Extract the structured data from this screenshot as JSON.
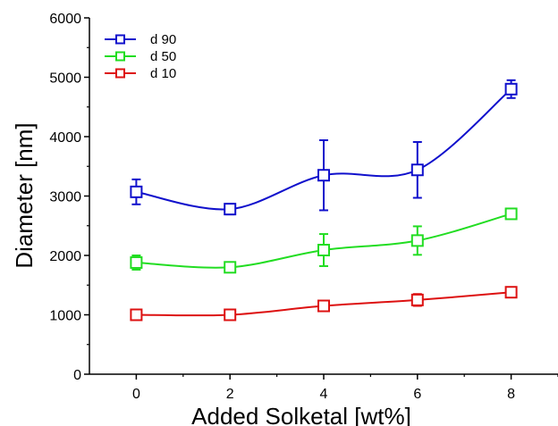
{
  "chart_data": {
    "type": "line",
    "xlabel": "Added Solketal [wt%]",
    "ylabel": "Diameter [nm]",
    "xlim": [
      -1,
      9
    ],
    "ylim": [
      0,
      6000
    ],
    "x_ticks": [
      0,
      2,
      4,
      6,
      8
    ],
    "y_ticks": [
      0,
      1000,
      2000,
      3000,
      4000,
      5000,
      6000
    ],
    "grid": false,
    "legend_position": "top-left",
    "x": [
      0,
      2,
      4,
      6,
      8
    ],
    "series": [
      {
        "name": "d 90",
        "color": "#1010cc",
        "marker": "open-square",
        "values": [
          3070,
          2780,
          3350,
          3440,
          4800
        ],
        "error": [
          210,
          90,
          590,
          470,
          150
        ]
      },
      {
        "name": "d 50",
        "color": "#22dd22",
        "marker": "open-square",
        "values": [
          1880,
          1800,
          2090,
          2250,
          2700
        ],
        "error": [
          120,
          40,
          270,
          240,
          50
        ]
      },
      {
        "name": "d 10",
        "color": "#dd1111",
        "marker": "open-square",
        "values": [
          1000,
          1000,
          1150,
          1250,
          1380
        ],
        "error": [
          40,
          40,
          80,
          100,
          40
        ]
      }
    ]
  }
}
